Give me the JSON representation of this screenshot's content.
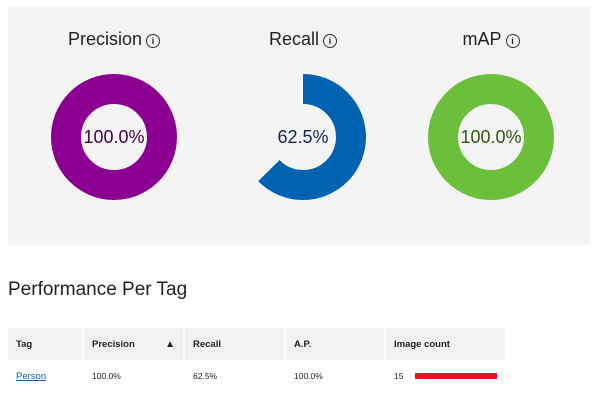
{
  "metrics": [
    {
      "title": "Precision",
      "value": "100.0%",
      "fraction": 1.0,
      "color": "#8b0090",
      "text_color": "#4a0040"
    },
    {
      "title": "Recall",
      "value": "62.5%",
      "fraction": 0.625,
      "color": "#0063b1",
      "text_color": "#0b2a55"
    },
    {
      "title": "mAP",
      "value": "100.0%",
      "fraction": 1.0,
      "color": "#6bbf3a",
      "text_color": "#2d5a10"
    }
  ],
  "info_icon_glyph": "i",
  "section_title": "Performance Per Tag",
  "table": {
    "headers": [
      "Tag",
      "Precision",
      "Recall",
      "A.P.",
      "Image count"
    ],
    "sorted_column": "Precision",
    "sort_arrow": "▲",
    "rows": [
      {
        "tag": "Person",
        "precision": "100.0%",
        "recall": "62.5%",
        "ap": "100.0%",
        "image_count": "15",
        "count_bar_fraction": 1.0
      }
    ],
    "bar_color": "#e81123"
  }
}
